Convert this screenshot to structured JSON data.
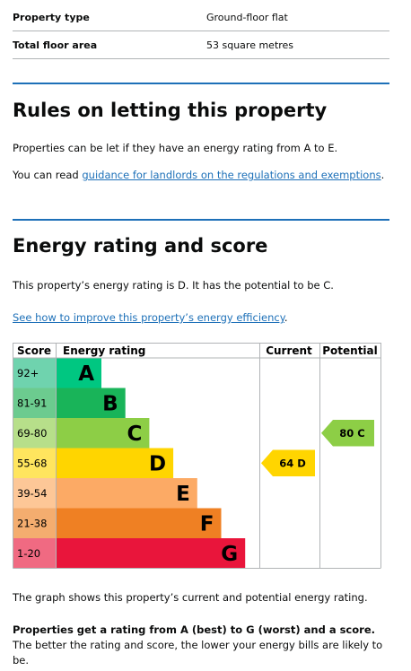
{
  "summary": [
    {
      "key": "Property type",
      "value": "Ground-floor flat"
    },
    {
      "key": "Total floor area",
      "value": "53 square metres"
    }
  ],
  "letting": {
    "heading": "Rules on letting this property",
    "para1": "Properties can be let if they have an energy rating from A to E.",
    "para2": {
      "before": "You can read ",
      "link": "guidance for landlords on the regulations and exemptions",
      "after": "."
    }
  },
  "energy": {
    "heading": "Energy rating and score",
    "para": "This property’s energy rating is D. It has the potential to be C.",
    "link": "See how to improve this property’s energy efficiency",
    "link_after": ".",
    "graph": {
      "headers": {
        "score": "Score",
        "rating": "Energy rating",
        "current": "Current",
        "potential": "Potential"
      },
      "rows": [
        {
          "score": "92+",
          "band": "A",
          "color": "#00c781",
          "tint": "#6fd3ae"
        },
        {
          "score": "81-91",
          "band": "B",
          "color": "#19b459",
          "tint": "#6ccb8f"
        },
        {
          "score": "69-80",
          "band": "C",
          "color": "#8dce46",
          "tint": "#b7df8a"
        },
        {
          "score": "55-68",
          "band": "D",
          "color": "#ffd500",
          "tint": "#ffe55e"
        },
        {
          "score": "39-54",
          "band": "E",
          "color": "#fcaa65",
          "tint": "#fdc797"
        },
        {
          "score": "21-38",
          "band": "F",
          "color": "#ef8023",
          "tint": "#f4ad6f"
        },
        {
          "score": "1-20",
          "band": "G",
          "color": "#e9153b",
          "tint": "#f06a82"
        }
      ],
      "current": {
        "score": 64,
        "band": "D"
      },
      "potential": {
        "score": 80,
        "band": "C"
      }
    },
    "caption": "The graph shows this property’s current and potential energy rating.",
    "explain": {
      "bold": "Properties get a rating from A (best) to G (worst) and a score.",
      "rest": " The better the rating and score, the lower your energy bills are likely to be."
    }
  }
}
